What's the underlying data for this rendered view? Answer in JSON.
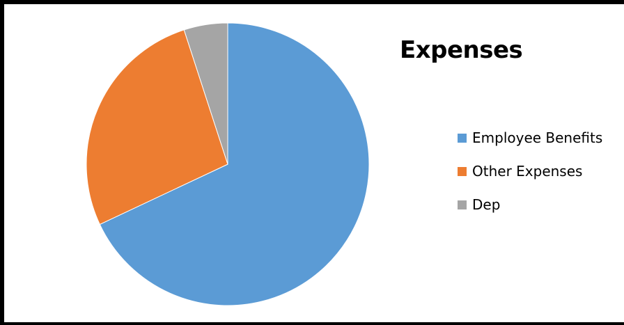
{
  "chart_data": {
    "type": "pie",
    "title": "Expenses",
    "categories": [
      "Employee Benefits",
      "Other Expenses",
      "Dep"
    ],
    "values": [
      68,
      27,
      5
    ],
    "colors": [
      "#5b9bd5",
      "#ed7d31",
      "#a5a5a5"
    ],
    "legend_position": "right",
    "start_angle_deg": 0,
    "direction": "clockwise"
  }
}
